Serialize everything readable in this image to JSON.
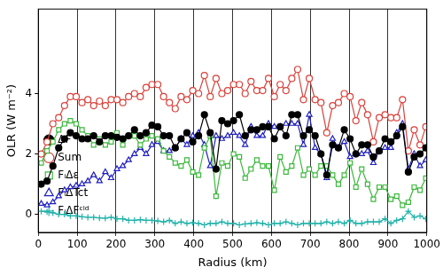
{
  "chart_data": {
    "type": "line",
    "x_label": "Radius (km)",
    "y_label": "OLR (W m⁻²)",
    "x": [
      7.5,
      22.5,
      37.5,
      52.5,
      67.5,
      82.5,
      97.5,
      112.5,
      127.5,
      142.5,
      157.5,
      172.5,
      187.5,
      202.5,
      217.5,
      232.5,
      247.5,
      262.5,
      277.5,
      292.5,
      307.5,
      322.5,
      337.5,
      352.5,
      367.5,
      382.5,
      397.5,
      412.5,
      427.5,
      442.5,
      457.5,
      472.5,
      487.5,
      502.5,
      517.5,
      532.5,
      547.5,
      562.5,
      577.5,
      592.5,
      607.5,
      622.5,
      637.5,
      652.5,
      667.5,
      682.5,
      697.5,
      712.5,
      727.5,
      742.5,
      757.5,
      772.5,
      787.5,
      802.5,
      817.5,
      832.5,
      847.5,
      862.5,
      877.5,
      892.5,
      907.5,
      922.5,
      937.5,
      952.5,
      967.5,
      982.5,
      997.5
    ],
    "series": [
      {
        "name": "ΔF",
        "color": "#000000",
        "marker": "filled_circle",
        "line_style": "solid",
        "values": [
          1.0,
          1.1,
          1.6,
          2.2,
          2.5,
          2.7,
          2.6,
          2.5,
          2.5,
          2.6,
          2.4,
          2.6,
          2.6,
          2.55,
          2.5,
          2.6,
          2.8,
          2.6,
          2.7,
          2.95,
          2.9,
          2.6,
          2.6,
          2.2,
          2.5,
          2.7,
          2.4,
          2.6,
          3.3,
          2.7,
          1.5,
          3.1,
          3.0,
          3.1,
          3.3,
          2.6,
          2.8,
          2.8,
          2.9,
          2.9,
          2.5,
          2.9,
          2.6,
          3.3,
          3.3,
          2.6,
          2.8,
          2.6,
          2.0,
          1.3,
          2.3,
          2.2,
          2.8,
          2.5,
          2.0,
          2.3,
          2.3,
          1.9,
          2.1,
          2.5,
          2.4,
          2.6,
          2.9,
          1.4,
          1.9,
          2.0,
          2.2
        ]
      },
      {
        "name": "Sum",
        "color": "#d9413a",
        "marker": "circle",
        "line_style": "solid",
        "values": [
          2.0,
          2.4,
          3.0,
          3.2,
          3.6,
          3.9,
          3.9,
          3.7,
          3.8,
          3.6,
          3.75,
          3.6,
          3.8,
          3.8,
          3.7,
          3.9,
          4.0,
          3.9,
          4.2,
          4.3,
          4.3,
          3.9,
          3.7,
          3.5,
          3.9,
          3.8,
          4.1,
          4.0,
          4.6,
          3.9,
          4.5,
          4.0,
          4.1,
          4.3,
          4.3,
          4.0,
          4.4,
          4.1,
          4.1,
          4.5,
          3.9,
          4.3,
          4.1,
          4.5,
          4.8,
          3.8,
          4.5,
          3.8,
          3.7,
          2.7,
          3.6,
          3.7,
          4.0,
          3.9,
          3.1,
          3.7,
          3.3,
          2.4,
          3.2,
          3.3,
          3.2,
          3.2,
          3.8,
          2.1,
          2.8,
          2.3,
          2.9
        ]
      },
      {
        "name": "FᵢΔε",
        "color": "#3cb83c",
        "marker": "square",
        "line_style": "solid",
        "values": [
          1.7,
          2.1,
          2.4,
          2.8,
          3.0,
          3.1,
          3.0,
          2.8,
          2.6,
          2.3,
          2.5,
          2.3,
          2.4,
          2.7,
          2.3,
          2.6,
          2.6,
          2.3,
          2.5,
          2.6,
          2.5,
          2.1,
          1.9,
          1.7,
          1.6,
          1.8,
          1.4,
          1.3,
          2.2,
          2.6,
          0.6,
          1.7,
          1.6,
          2.0,
          1.9,
          1.2,
          1.5,
          1.8,
          1.6,
          1.6,
          0.8,
          1.9,
          1.4,
          1.6,
          2.2,
          1.3,
          1.5,
          1.3,
          1.6,
          1.6,
          1.3,
          1.0,
          1.3,
          1.7,
          0.9,
          1.5,
          1.0,
          0.5,
          0.9,
          0.9,
          0.5,
          0.6,
          0.3,
          0.4,
          0.9,
          0.8,
          1.2
        ]
      },
      {
        "name": "FᵢΔTct",
        "color": "#2020c0",
        "marker": "triangle",
        "line_style": "solid",
        "values": [
          0.35,
          0.3,
          0.4,
          0.6,
          0.8,
          0.9,
          0.95,
          1.0,
          1.1,
          1.3,
          1.1,
          1.4,
          1.2,
          1.5,
          1.6,
          1.8,
          2.0,
          2.2,
          2.0,
          2.3,
          2.4,
          2.1,
          2.1,
          2.2,
          2.5,
          2.3,
          2.6,
          2.7,
          2.3,
          1.6,
          2.6,
          2.5,
          2.6,
          2.7,
          2.6,
          2.3,
          2.9,
          2.6,
          2.6,
          3.0,
          2.9,
          2.9,
          3.0,
          3.0,
          3.0,
          2.3,
          3.3,
          2.2,
          2.0,
          1.2,
          2.5,
          2.2,
          2.4,
          1.9,
          2.0,
          2.0,
          2.1,
          1.7,
          2.1,
          2.2,
          2.2,
          2.7,
          3.0,
          1.5,
          2.0,
          1.6,
          1.8
        ]
      },
      {
        "name": "FᵢΔFᶜˡᵈ",
        "color": "#20b2aa",
        "marker": "plus",
        "line_style": "solid",
        "values": [
          0.1,
          0.08,
          0.05,
          0.0,
          0.0,
          -0.05,
          -0.05,
          -0.08,
          -0.1,
          -0.1,
          -0.12,
          -0.13,
          -0.1,
          -0.15,
          -0.15,
          -0.2,
          -0.2,
          -0.18,
          -0.2,
          -0.2,
          -0.22,
          -0.25,
          -0.2,
          -0.3,
          -0.25,
          -0.3,
          -0.28,
          -0.3,
          -0.35,
          -0.3,
          -0.3,
          -0.25,
          -0.3,
          -0.3,
          -0.35,
          -0.32,
          -0.3,
          -0.28,
          -0.3,
          -0.35,
          -0.3,
          -0.3,
          -0.25,
          -0.3,
          -0.35,
          -0.3,
          -0.3,
          -0.3,
          -0.3,
          -0.25,
          -0.3,
          -0.25,
          -0.3,
          -0.2,
          -0.3,
          -0.3,
          -0.25,
          -0.25,
          -0.25,
          -0.15,
          -0.3,
          -0.2,
          -0.15,
          0.1,
          -0.1,
          -0.05,
          -0.15
        ]
      }
    ],
    "xlim": [
      0,
      1000
    ],
    "xticks": [
      0,
      100,
      200,
      300,
      400,
      500,
      600,
      700,
      800,
      900,
      1000
    ],
    "ylim": [
      -0.6,
      6.8
    ],
    "yticks": [
      0,
      2,
      4
    ],
    "grid": true,
    "legend": "top"
  }
}
